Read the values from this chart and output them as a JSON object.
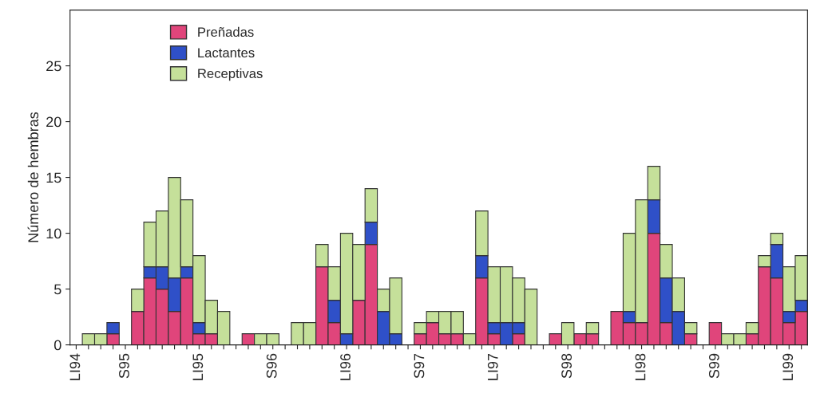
{
  "chart_data": {
    "type": "bar",
    "stacked": true,
    "ylabel": "Número de hembras",
    "categories": [
      "LI94",
      null,
      null,
      null,
      "S95",
      null,
      null,
      null,
      null,
      null,
      "LI95",
      null,
      null,
      null,
      null,
      null,
      "S96",
      null,
      null,
      null,
      null,
      null,
      "LI96",
      null,
      null,
      null,
      null,
      null,
      "S97",
      null,
      null,
      null,
      null,
      null,
      "LI97",
      null,
      null,
      null,
      null,
      null,
      "S98",
      null,
      null,
      null,
      null,
      null,
      "LI98",
      null,
      null,
      null,
      null,
      null,
      "S99",
      null,
      null,
      null,
      null,
      null,
      "LI99",
      null
    ],
    "series": [
      {
        "name": "Preñadas",
        "color": "#e0457b",
        "values": [
          0,
          0,
          0,
          1,
          0,
          3,
          6,
          5,
          3,
          6,
          1,
          1,
          0,
          0,
          1,
          0,
          0,
          0,
          0,
          0,
          7,
          2,
          0,
          4,
          9,
          0,
          0,
          0,
          1,
          2,
          1,
          1,
          0,
          6,
          1,
          0,
          1,
          0,
          0,
          1,
          0,
          1,
          1,
          0,
          3,
          2,
          2,
          10,
          2,
          0,
          1,
          0,
          2,
          0,
          0,
          1,
          7,
          6,
          2,
          3
        ]
      },
      {
        "name": "Lactantes",
        "color": "#2f50c8",
        "values": [
          0,
          0,
          0,
          1,
          0,
          0,
          1,
          2,
          3,
          1,
          1,
          0,
          0,
          0,
          0,
          0,
          0,
          0,
          0,
          0,
          0,
          2,
          1,
          0,
          2,
          3,
          1,
          0,
          0,
          0,
          0,
          0,
          0,
          2,
          1,
          2,
          1,
          0,
          0,
          0,
          0,
          0,
          0,
          0,
          0,
          1,
          0,
          3,
          4,
          3,
          0,
          0,
          0,
          0,
          0,
          0,
          0,
          3,
          1,
          1
        ]
      },
      {
        "name": "Receptivas",
        "color": "#c5e09a",
        "values": [
          0,
          1,
          1,
          0,
          0,
          2,
          4,
          5,
          9,
          6,
          6,
          3,
          3,
          0,
          0,
          1,
          1,
          0,
          2,
          2,
          2,
          3,
          9,
          5,
          3,
          2,
          5,
          0,
          1,
          1,
          2,
          2,
          1,
          4,
          5,
          5,
          4,
          5,
          0,
          0,
          2,
          0,
          1,
          0,
          0,
          7,
          11,
          3,
          3,
          3,
          1,
          0,
          0,
          1,
          1,
          1,
          1,
          1,
          4,
          4
        ]
      }
    ],
    "ylim": [
      0,
      30
    ],
    "yticks": [
      0,
      5,
      10,
      15,
      20,
      25
    ],
    "grid": false,
    "legend": "top left"
  }
}
